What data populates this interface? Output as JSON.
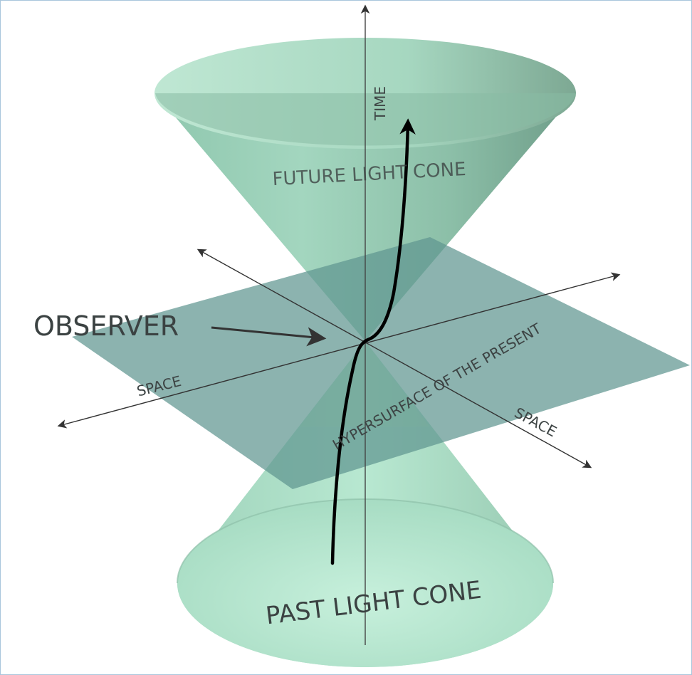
{
  "diagram": {
    "labels": {
      "time": "TIME",
      "future_cone": "FUTURE LIGHT CONE",
      "past_cone": "PAST LIGHT CONE",
      "observer": "OBSERVER",
      "space_left": "SPACE",
      "space_right": "SPACE",
      "hypersurface": "HYPERSURFACE OF THE PRESENT"
    },
    "colors": {
      "cone_fill": "#a9dcc6",
      "cone_dark": "#6fa890",
      "plane_fill": "#6f9f9a",
      "axis": "#333333",
      "worldline": "#000000",
      "frame_border": "#a9c6dc"
    }
  }
}
